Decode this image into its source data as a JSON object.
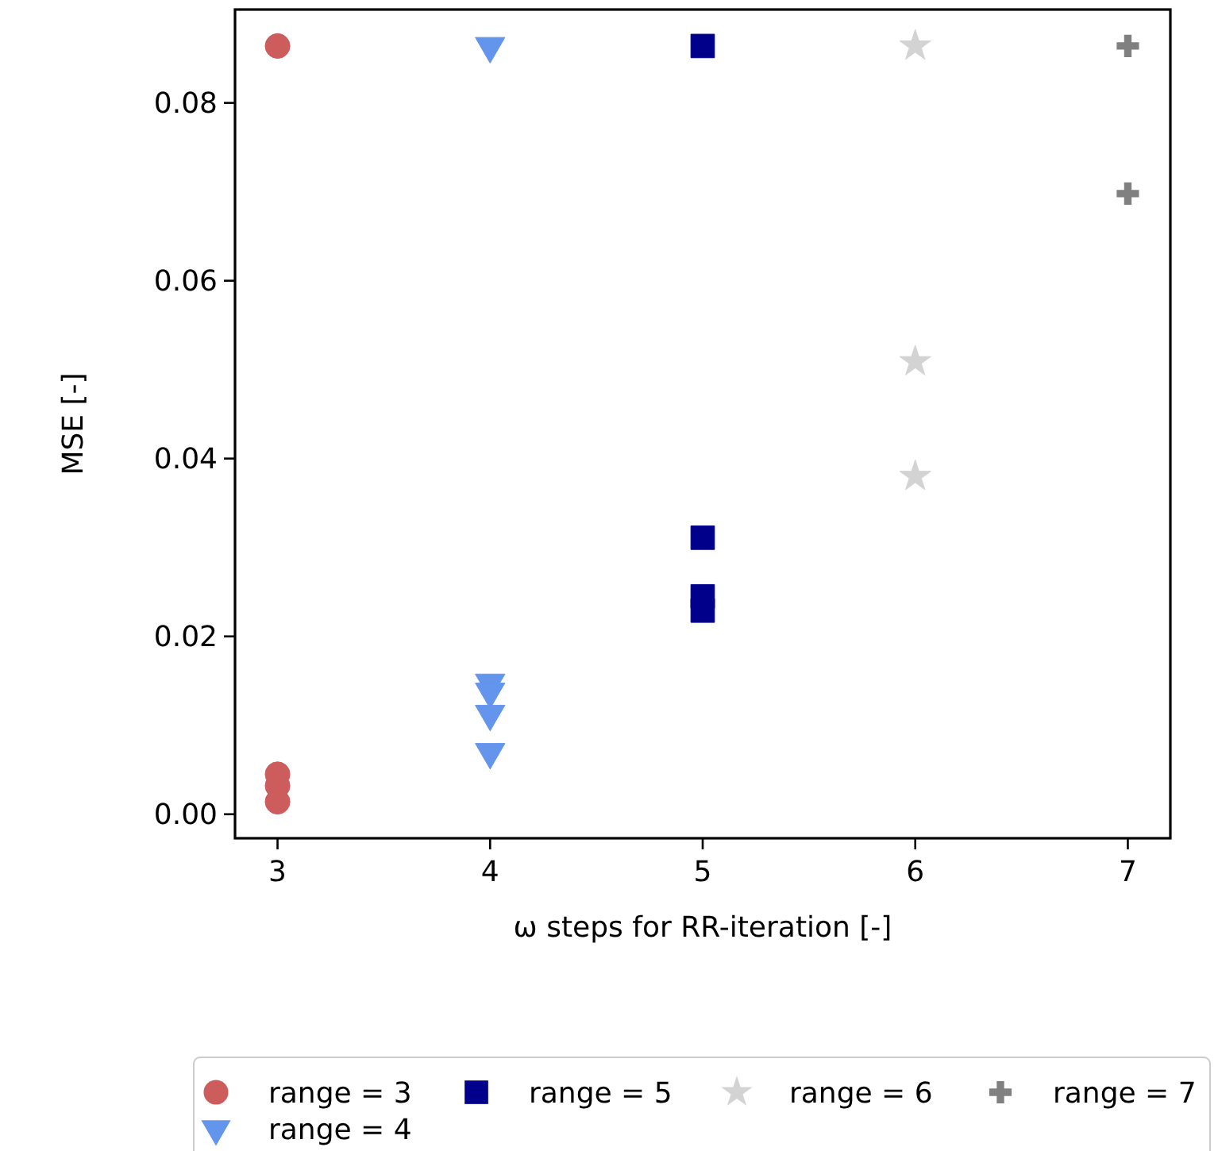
{
  "chart_data": {
    "type": "scatter",
    "xlabel": "ω steps for RR-iteration [-]",
    "ylabel": "MSE [-]",
    "xlim": [
      2.8,
      7.2
    ],
    "xticks": [
      3,
      4,
      5,
      6,
      7
    ],
    "ylim": [
      -0.0027,
      0.0905
    ],
    "yticks": [
      {
        "value": 0,
        "label": "0.00"
      },
      {
        "value": 0.02,
        "label": "0.02"
      },
      {
        "value": 0.04,
        "label": "0.04"
      },
      {
        "value": 0.06,
        "label": "0.06"
      },
      {
        "value": 0.08,
        "label": "0.08"
      }
    ],
    "grid": false,
    "legend": "bottom",
    "series": [
      {
        "name": "range = 3",
        "color": "#cd5c5c",
        "marker": "circle",
        "x": [
          3,
          3,
          3,
          3
        ],
        "values": [
          0.0864,
          0.0045,
          0.0032,
          0.0014
        ]
      },
      {
        "name": "range = 4",
        "color": "#6495ed",
        "marker": "triangle",
        "x": [
          4,
          4,
          4,
          4,
          4
        ],
        "values": [
          0.0864,
          0.0148,
          0.0138,
          0.0113,
          0.007
        ]
      },
      {
        "name": "range = 5",
        "color": "#00008b",
        "marker": "square",
        "x": [
          5,
          5,
          5,
          5
        ],
        "values": [
          0.0864,
          0.0311,
          0.0245,
          0.0229
        ]
      },
      {
        "name": "range = 6",
        "color": "#d3d3d3",
        "marker": "star",
        "x": [
          6,
          6,
          6
        ],
        "values": [
          0.0864,
          0.0509,
          0.038
        ]
      },
      {
        "name": "range = 7",
        "color": "#808080",
        "marker": "cross",
        "x": [
          7,
          7
        ],
        "values": [
          0.0864,
          0.0698
        ]
      }
    ]
  }
}
